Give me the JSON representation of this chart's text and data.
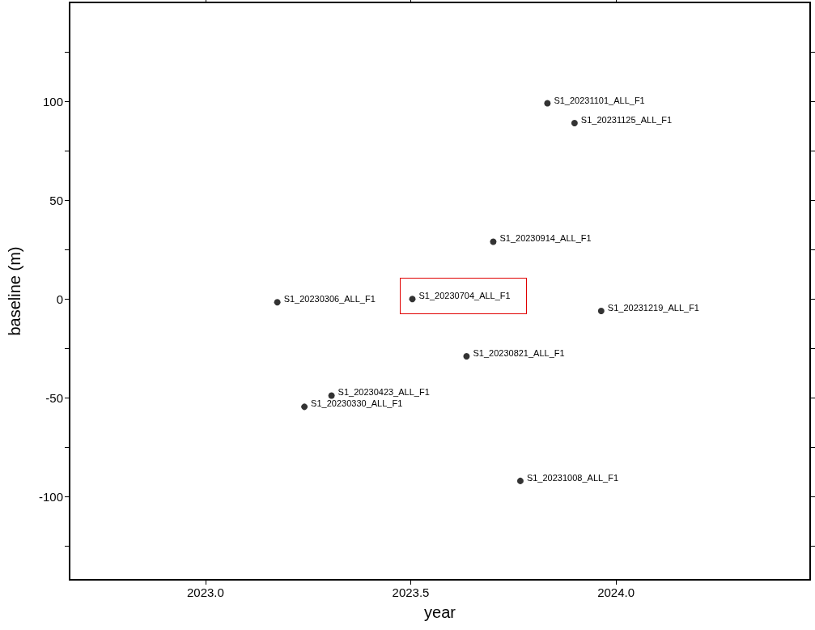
{
  "chart_data": {
    "type": "scatter",
    "xlabel": "year",
    "ylabel": "baseline (m)",
    "x": [
      2023.175,
      2023.241,
      2023.307,
      2023.504,
      2023.636,
      2023.701,
      2023.767,
      2023.833,
      2023.899,
      2023.964
    ],
    "series": [
      {
        "color": "#000000",
        "values": [
          -1.6,
          -54.5,
          -48.8,
          0,
          -29,
          29,
          -92,
          99,
          89,
          -6
        ]
      }
    ],
    "xlim": [
      2022.669,
      2024.473
    ],
    "ylim": [
      -142,
      150
    ],
    "xticks": [
      {
        "value": 2023,
        "label": "2023.0"
      },
      {
        "value": 2023.5,
        "label": "2023.5"
      },
      {
        "value": 2024,
        "label": "2024.0"
      }
    ],
    "yticks": [
      {
        "value": -125,
        "label": null
      },
      -100,
      {
        "value": -75,
        "label": null
      },
      -50,
      {
        "value": -25,
        "label": null
      },
      0,
      {
        "value": 25,
        "label": null
      },
      50,
      {
        "value": 75,
        "label": null
      },
      100,
      {
        "value": 125,
        "label": null
      }
    ],
    "annotations": [
      {
        "text": "S1_20230306_ALL_F1",
        "x": 2023.175,
        "y": -1.6
      },
      {
        "text": "S1_20230330_ALL_F1",
        "x": 2023.241,
        "y": -54.5
      },
      {
        "text": "S1_20230423_ALL_F1",
        "x": 2023.307,
        "y": -48.8
      },
      {
        "text": "S1_20230704_ALL_F1",
        "x": 2023.504,
        "y": 0
      },
      {
        "text": "S1_20230821_ALL_F1",
        "x": 2023.636,
        "y": -29
      },
      {
        "text": "S1_20230914_ALL_F1",
        "x": 2023.701,
        "y": 29
      },
      {
        "text": "S1_20231008_ALL_F1",
        "x": 2023.767,
        "y": -92
      },
      {
        "text": "S1_20231101_ALL_F1",
        "x": 2023.833,
        "y": 99
      },
      {
        "text": "S1_20231125_ALL_F1",
        "x": 2023.899,
        "y": 89
      },
      {
        "text": "S1_20231219_ALL_F1",
        "x": 2023.964,
        "y": -6
      }
    ],
    "grid": false,
    "marker": "circle"
  }
}
